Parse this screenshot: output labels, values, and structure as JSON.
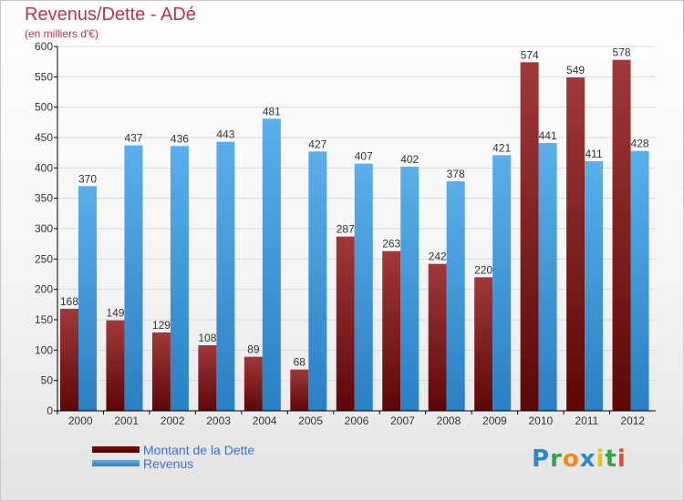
{
  "header": {
    "title": "Revenus/Dette - ADé",
    "subtitle": "(en milliers d'€)"
  },
  "legend": {
    "debt_label": "Montant de la Dette",
    "revenue_label": "Revenus"
  },
  "logo": {
    "letters": [
      "P",
      "r",
      "o",
      "x",
      "i",
      "t",
      "i"
    ],
    "colors": [
      "#2f86c9",
      "#3aa14a",
      "#f08a1c",
      "#2f86c9",
      "#e2c21a",
      "#3aa14a",
      "#e64a2a"
    ]
  },
  "colors": {
    "debt": "#8a1c1c",
    "revenue": "#3d98dd",
    "grid": "#d8d8d8",
    "axis": "#000000",
    "text": "#333333"
  },
  "chart_data": {
    "type": "bar",
    "title": "Revenus/Dette - ADé",
    "subtitle": "(en milliers d'€)",
    "categories": [
      "2000",
      "2001",
      "2002",
      "2003",
      "2004",
      "2005",
      "2006",
      "2007",
      "2008",
      "2009",
      "2010",
      "2011",
      "2012"
    ],
    "series": [
      {
        "name": "Montant de la Dette",
        "values": [
          168,
          149,
          129,
          108,
          89,
          68,
          287,
          263,
          242,
          220,
          574,
          549,
          578
        ]
      },
      {
        "name": "Revenus",
        "values": [
          370,
          437,
          436,
          443,
          481,
          427,
          407,
          402,
          378,
          421,
          441,
          411,
          428
        ]
      }
    ],
    "ylim": [
      0,
      600
    ],
    "yticks": [
      0,
      50,
      100,
      150,
      200,
      250,
      300,
      350,
      400,
      450,
      500,
      550,
      600
    ],
    "grid": true,
    "legend_position": "bottom-left"
  }
}
